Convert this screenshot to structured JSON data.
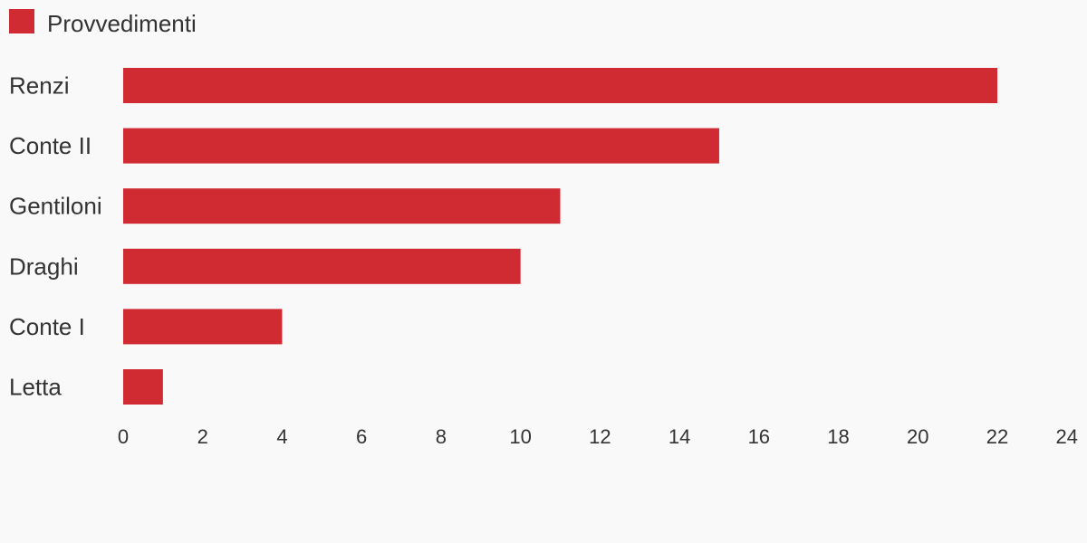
{
  "colors": {
    "bar": "#d02b33",
    "background": "#f9f9f9",
    "text": "#333333"
  },
  "chart_data": {
    "type": "bar",
    "orientation": "horizontal",
    "categories": [
      "Renzi",
      "Conte II",
      "Gentiloni",
      "Draghi",
      "Conte I",
      "Letta"
    ],
    "series": [
      {
        "name": "Provvedimenti",
        "values": [
          22,
          15,
          11,
          10,
          4,
          1
        ]
      }
    ],
    "xlim": [
      0,
      24
    ],
    "xticks": [
      "0",
      "2",
      "4",
      "6",
      "8",
      "10",
      "12",
      "14",
      "16",
      "18",
      "20",
      "22",
      "24"
    ],
    "legend_position": "top-left",
    "grid": false
  }
}
